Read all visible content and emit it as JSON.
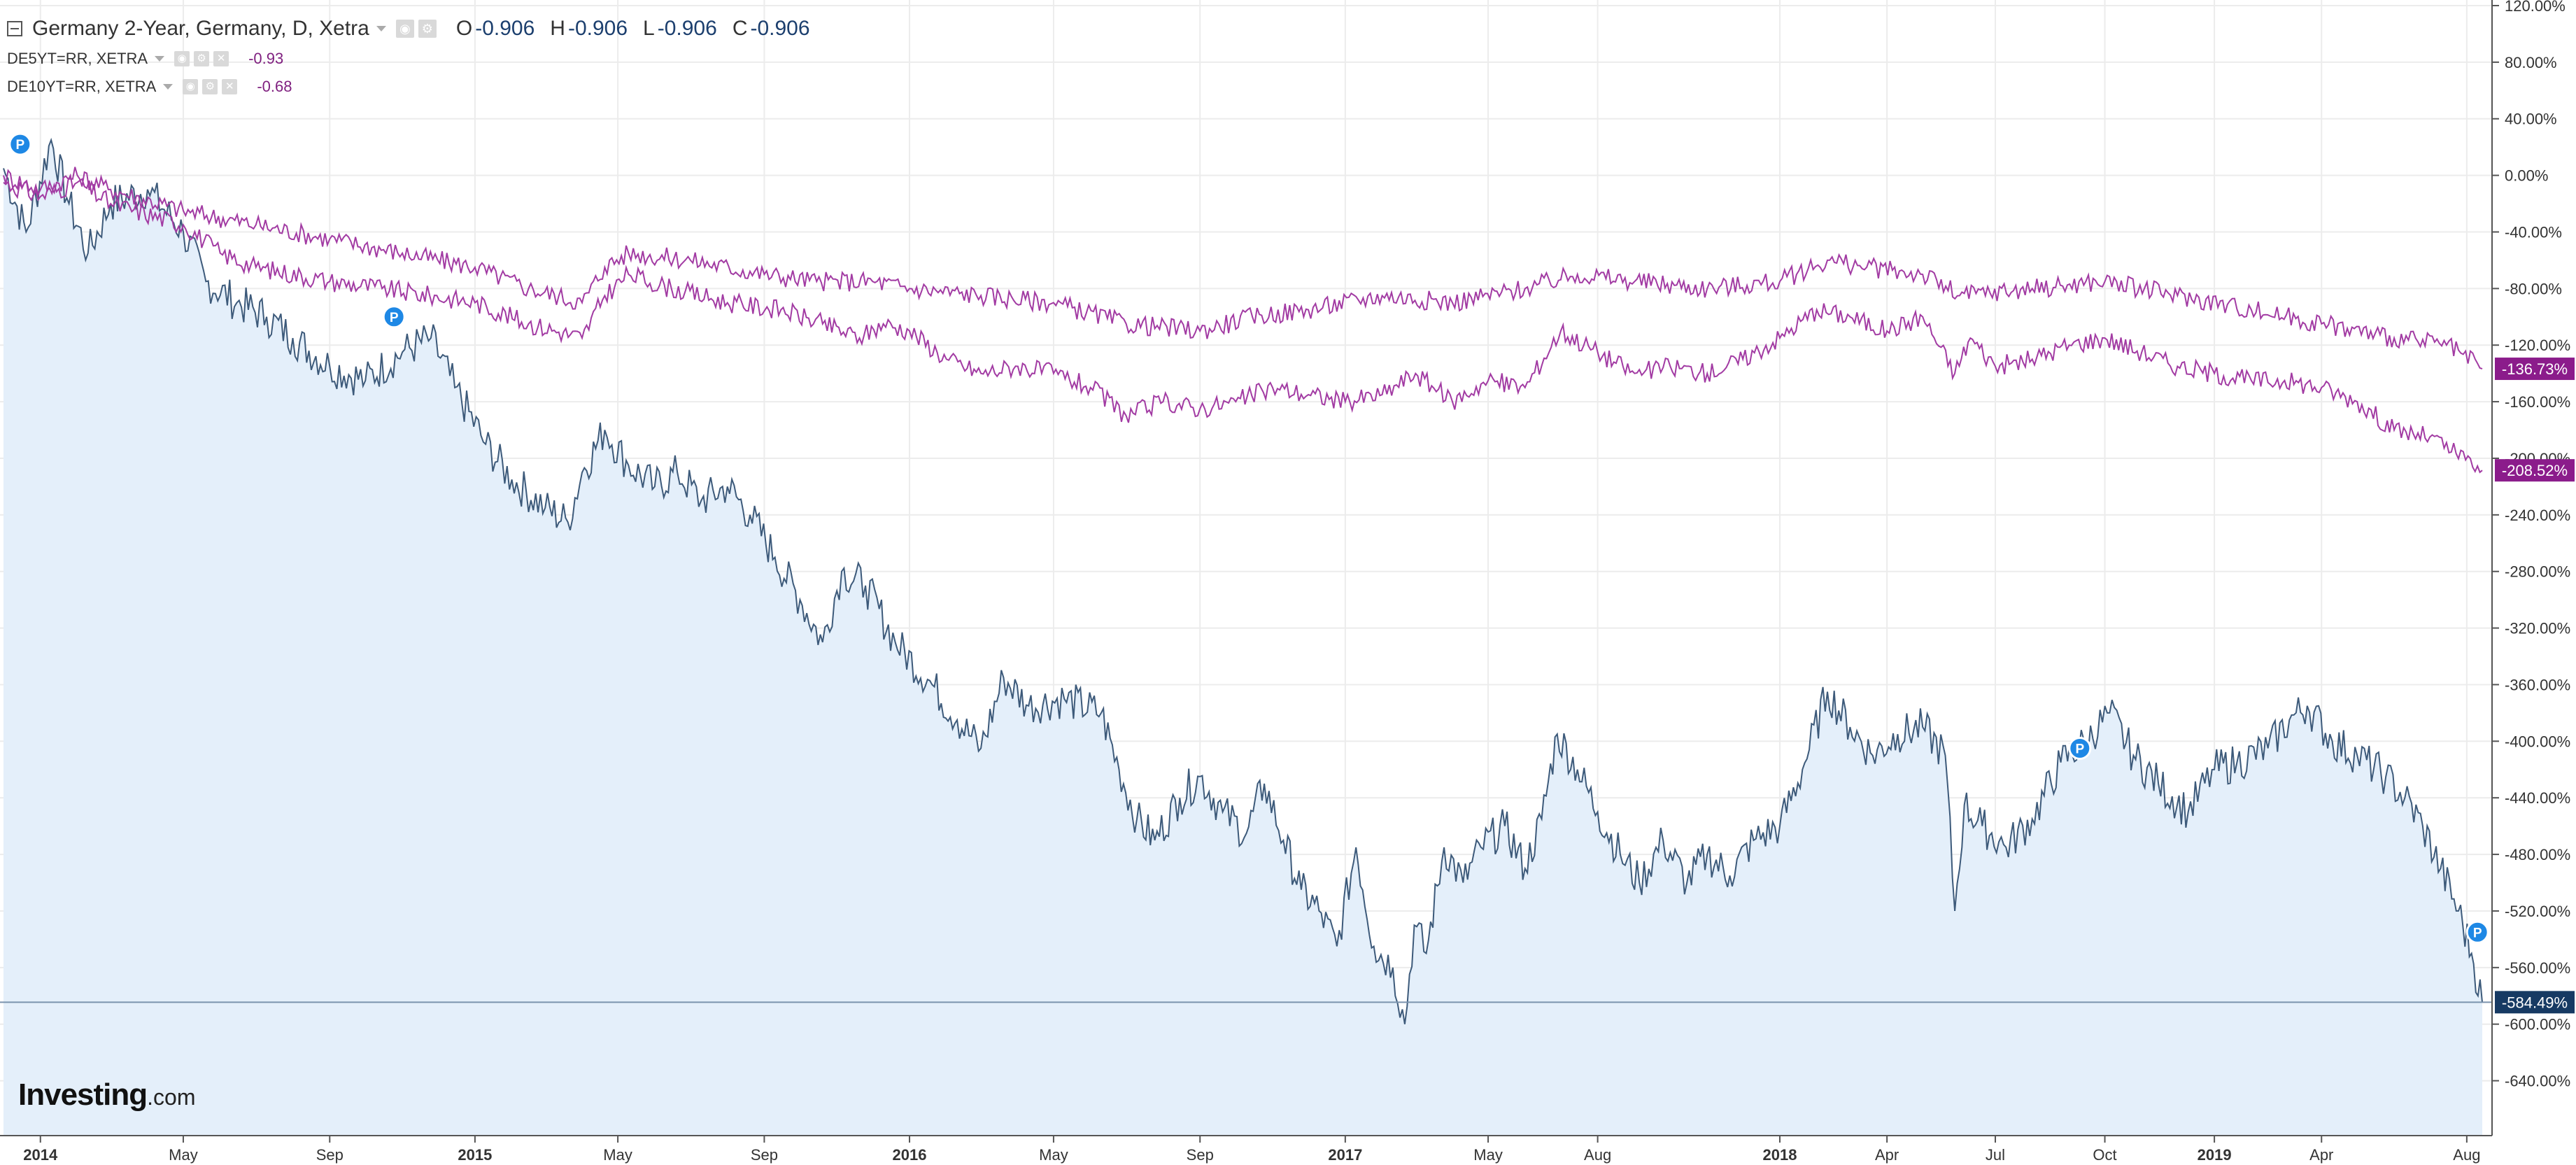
{
  "header": {
    "main_title": "Germany 2-Year, Germany, D, Xetra",
    "ohlc": [
      {
        "label": "O",
        "value": "-0.906"
      },
      {
        "label": "H",
        "value": "-0.906"
      },
      {
        "label": "L",
        "value": "-0.906"
      },
      {
        "label": "C",
        "value": "-0.906"
      }
    ],
    "compare_1": {
      "name": "DE5YT=RR, XETRA",
      "value": "-0.93"
    },
    "compare_2": {
      "name": "DE10YT=RR, XETRA",
      "value": "-0.68"
    }
  },
  "logo": {
    "name": "Investing",
    "domain": ".com"
  },
  "colors": {
    "main_line": "#3d5a7a",
    "main_fill": "#e4effa",
    "compare_line": "#a23ba3",
    "compare_tag": "#8b1c8b",
    "main_tag": "#173a63",
    "event_marker": "#1e88e5",
    "grid": "#ececec"
  },
  "chart_data": {
    "type": "area",
    "yunit": "%",
    "ylim": [
      -660,
      120
    ],
    "yticks": [
      "120.00%",
      "80.00%",
      "40.00%",
      "0.00%",
      "-40.00%",
      "-80.00%",
      "-120.00%",
      "-160.00%",
      "-200.00%",
      "-240.00%",
      "-280.00%",
      "-320.00%",
      "-360.00%",
      "-400.00%",
      "-440.00%",
      "-480.00%",
      "-520.00%",
      "-560.00%",
      "-600.00%",
      "-640.00%"
    ],
    "xlim": [
      "2013-12-01",
      "2019-08-14"
    ],
    "xticks": [
      {
        "date": "2014-01-01",
        "label": "2014",
        "major": true
      },
      {
        "date": "2014-05-01",
        "label": "May",
        "major": false
      },
      {
        "date": "2014-09-01",
        "label": "Sep",
        "major": false
      },
      {
        "date": "2015-01-01",
        "label": "2015",
        "major": true
      },
      {
        "date": "2015-05-01",
        "label": "May",
        "major": false
      },
      {
        "date": "2015-09-01",
        "label": "Sep",
        "major": false
      },
      {
        "date": "2016-01-01",
        "label": "2016",
        "major": true
      },
      {
        "date": "2016-05-01",
        "label": "May",
        "major": false
      },
      {
        "date": "2016-09-01",
        "label": "Sep",
        "major": false
      },
      {
        "date": "2017-01-01",
        "label": "2017",
        "major": true
      },
      {
        "date": "2017-05-01",
        "label": "May",
        "major": false
      },
      {
        "date": "2017-08-01",
        "label": "Aug",
        "major": false
      },
      {
        "date": "2018-01-01",
        "label": "2018",
        "major": true
      },
      {
        "date": "2018-04-01",
        "label": "Apr",
        "major": false
      },
      {
        "date": "2018-07-01",
        "label": "Jul",
        "major": false
      },
      {
        "date": "2018-10-01",
        "label": "Oct",
        "major": false
      },
      {
        "date": "2019-01-01",
        "label": "2019",
        "major": true
      },
      {
        "date": "2019-04-01",
        "label": "Apr",
        "major": false
      },
      {
        "date": "2019-08-01",
        "label": "Aug",
        "major": false
      }
    ],
    "grid": true,
    "series": [
      {
        "name": "Germany 2-Year",
        "style": "area",
        "last_label": "-584.49%",
        "points": [
          [
            "2013-12-01",
            5
          ],
          [
            "2013-12-20",
            -40
          ],
          [
            "2014-01-10",
            25
          ],
          [
            "2014-01-25",
            -20
          ],
          [
            "2014-02-10",
            -55
          ],
          [
            "2014-03-01",
            -20
          ],
          [
            "2014-04-01",
            -10
          ],
          [
            "2014-05-01",
            -40
          ],
          [
            "2014-05-20",
            -75
          ],
          [
            "2014-06-15",
            -90
          ],
          [
            "2014-07-10",
            -100
          ],
          [
            "2014-08-01",
            -115
          ],
          [
            "2014-09-01",
            -135
          ],
          [
            "2014-10-01",
            -145
          ],
          [
            "2014-11-01",
            -125
          ],
          [
            "2014-11-25",
            -115
          ],
          [
            "2014-12-15",
            -150
          ],
          [
            "2015-01-10",
            -190
          ],
          [
            "2015-02-01",
            -215
          ],
          [
            "2015-03-01",
            -235
          ],
          [
            "2015-03-20",
            -245
          ],
          [
            "2015-04-01",
            -210
          ],
          [
            "2015-04-20",
            -180
          ],
          [
            "2015-05-10",
            -205
          ],
          [
            "2015-06-01",
            -220
          ],
          [
            "2015-06-20",
            -210
          ],
          [
            "2015-07-10",
            -230
          ],
          [
            "2015-08-01",
            -220
          ],
          [
            "2015-08-20",
            -240
          ],
          [
            "2015-09-10",
            -270
          ],
          [
            "2015-10-01",
            -300
          ],
          [
            "2015-10-20",
            -330
          ],
          [
            "2015-11-05",
            -280
          ],
          [
            "2015-11-25",
            -290
          ],
          [
            "2015-12-20",
            -330
          ],
          [
            "2016-01-20",
            -360
          ],
          [
            "2016-02-10",
            -385
          ],
          [
            "2016-03-01",
            -405
          ],
          [
            "2016-03-20",
            -355
          ],
          [
            "2016-04-10",
            -375
          ],
          [
            "2016-05-10",
            -370
          ],
          [
            "2016-06-10",
            -380
          ],
          [
            "2016-06-25",
            -420
          ],
          [
            "2016-07-10",
            -455
          ],
          [
            "2016-07-25",
            -470
          ],
          [
            "2016-08-15",
            -440
          ],
          [
            "2016-09-01",
            -425
          ],
          [
            "2016-09-20",
            -450
          ],
          [
            "2016-10-10",
            -465
          ],
          [
            "2016-10-25",
            -430
          ],
          [
            "2016-11-10",
            -470
          ],
          [
            "2016-11-25",
            -505
          ],
          [
            "2016-12-10",
            -520
          ],
          [
            "2016-12-25",
            -545
          ],
          [
            "2017-01-10",
            -475
          ],
          [
            "2017-01-25",
            -545
          ],
          [
            "2017-02-10",
            -560
          ],
          [
            "2017-02-20",
            -600
          ],
          [
            "2017-02-28",
            -530
          ],
          [
            "2017-03-10",
            -550
          ],
          [
            "2017-03-25",
            -475
          ],
          [
            "2017-04-10",
            -500
          ],
          [
            "2017-04-25",
            -475
          ],
          [
            "2017-05-15",
            -460
          ],
          [
            "2017-06-01",
            -490
          ],
          [
            "2017-06-15",
            -455
          ],
          [
            "2017-06-28",
            -395
          ],
          [
            "2017-07-15",
            -420
          ],
          [
            "2017-08-01",
            -450
          ],
          [
            "2017-08-20",
            -480
          ],
          [
            "2017-09-05",
            -500
          ],
          [
            "2017-09-25",
            -470
          ],
          [
            "2017-10-15",
            -500
          ],
          [
            "2017-11-01",
            -480
          ],
          [
            "2017-11-20",
            -495
          ],
          [
            "2017-12-10",
            -470
          ],
          [
            "2018-01-01",
            -460
          ],
          [
            "2018-01-20",
            -420
          ],
          [
            "2018-02-10",
            -365
          ],
          [
            "2018-03-01",
            -390
          ],
          [
            "2018-03-20",
            -410
          ],
          [
            "2018-04-10",
            -395
          ],
          [
            "2018-05-01",
            -390
          ],
          [
            "2018-05-20",
            -410
          ],
          [
            "2018-05-28",
            -520
          ],
          [
            "2018-06-05",
            -445
          ],
          [
            "2018-06-20",
            -460
          ],
          [
            "2018-07-10",
            -475
          ],
          [
            "2018-08-01",
            -455
          ],
          [
            "2018-08-25",
            -415
          ],
          [
            "2018-09-15",
            -400
          ],
          [
            "2018-10-05",
            -380
          ],
          [
            "2018-10-25",
            -410
          ],
          [
            "2018-11-15",
            -430
          ],
          [
            "2018-12-10",
            -450
          ],
          [
            "2019-01-01",
            -420
          ],
          [
            "2019-01-20",
            -415
          ],
          [
            "2019-02-15",
            -405
          ],
          [
            "2019-03-05",
            -385
          ],
          [
            "2019-03-20",
            -375
          ],
          [
            "2019-04-10",
            -400
          ],
          [
            "2019-05-01",
            -410
          ],
          [
            "2019-05-25",
            -425
          ],
          [
            "2019-06-10",
            -440
          ],
          [
            "2019-06-25",
            -460
          ],
          [
            "2019-07-10",
            -490
          ],
          [
            "2019-07-25",
            -520
          ],
          [
            "2019-08-05",
            -550
          ],
          [
            "2019-08-14",
            -584.49
          ]
        ]
      },
      {
        "name": "DE5YT=RR, XETRA",
        "style": "line",
        "last_label": "-208.52%",
        "points": [
          [
            "2013-12-01",
            -5
          ],
          [
            "2014-01-01",
            -15
          ],
          [
            "2014-02-01",
            -5
          ],
          [
            "2014-03-01",
            -20
          ],
          [
            "2014-05-01",
            -35
          ],
          [
            "2014-06-01",
            -55
          ],
          [
            "2014-07-01",
            -65
          ],
          [
            "2014-09-01",
            -75
          ],
          [
            "2014-10-15",
            -80
          ],
          [
            "2015-01-01",
            -90
          ],
          [
            "2015-02-15",
            -105
          ],
          [
            "2015-04-01",
            -115
          ],
          [
            "2015-04-20",
            -85
          ],
          [
            "2015-05-10",
            -70
          ],
          [
            "2015-06-15",
            -80
          ],
          [
            "2015-08-01",
            -90
          ],
          [
            "2015-09-15",
            -95
          ],
          [
            "2015-10-20",
            -105
          ],
          [
            "2015-11-20",
            -115
          ],
          [
            "2015-12-10",
            -105
          ],
          [
            "2016-01-01",
            -110
          ],
          [
            "2016-02-01",
            -130
          ],
          [
            "2016-03-01",
            -140
          ],
          [
            "2016-04-01",
            -135
          ],
          [
            "2016-05-01",
            -140
          ],
          [
            "2016-06-01",
            -150
          ],
          [
            "2016-07-01",
            -170
          ],
          [
            "2016-08-01",
            -160
          ],
          [
            "2016-09-01",
            -165
          ],
          [
            "2016-10-01",
            -160
          ],
          [
            "2016-11-01",
            -150
          ],
          [
            "2016-12-01",
            -155
          ],
          [
            "2017-01-01",
            -160
          ],
          [
            "2017-02-01",
            -155
          ],
          [
            "2017-03-01",
            -140
          ],
          [
            "2017-04-01",
            -160
          ],
          [
            "2017-05-01",
            -145
          ],
          [
            "2017-06-01",
            -150
          ],
          [
            "2017-07-01",
            -110
          ],
          [
            "2017-08-01",
            -125
          ],
          [
            "2017-09-01",
            -140
          ],
          [
            "2017-10-01",
            -135
          ],
          [
            "2017-11-01",
            -140
          ],
          [
            "2017-12-01",
            -130
          ],
          [
            "2018-01-01",
            -115
          ],
          [
            "2018-02-01",
            -95
          ],
          [
            "2018-03-01",
            -100
          ],
          [
            "2018-04-01",
            -110
          ],
          [
            "2018-05-01",
            -100
          ],
          [
            "2018-05-28",
            -140
          ],
          [
            "2018-06-10",
            -115
          ],
          [
            "2018-07-01",
            -135
          ],
          [
            "2018-08-01",
            -130
          ],
          [
            "2018-09-01",
            -120
          ],
          [
            "2018-10-01",
            -115
          ],
          [
            "2018-11-01",
            -125
          ],
          [
            "2018-12-01",
            -135
          ],
          [
            "2019-01-01",
            -140
          ],
          [
            "2019-02-01",
            -145
          ],
          [
            "2019-03-01",
            -145
          ],
          [
            "2019-04-01",
            -150
          ],
          [
            "2019-05-01",
            -160
          ],
          [
            "2019-06-01",
            -180
          ],
          [
            "2019-07-01",
            -185
          ],
          [
            "2019-08-14",
            -208.52
          ]
        ]
      },
      {
        "name": "DE10YT=RR, XETRA",
        "style": "line",
        "last_label": "-136.73%",
        "points": [
          [
            "2013-12-01",
            0
          ],
          [
            "2014-01-01",
            -10
          ],
          [
            "2014-02-01",
            0
          ],
          [
            "2014-03-01",
            -10
          ],
          [
            "2014-05-01",
            -25
          ],
          [
            "2014-07-01",
            -35
          ],
          [
            "2014-09-01",
            -45
          ],
          [
            "2014-11-01",
            -55
          ],
          [
            "2015-01-01",
            -65
          ],
          [
            "2015-02-15",
            -80
          ],
          [
            "2015-04-01",
            -90
          ],
          [
            "2015-04-20",
            -65
          ],
          [
            "2015-05-10",
            -55
          ],
          [
            "2015-07-01",
            -60
          ],
          [
            "2015-09-01",
            -70
          ],
          [
            "2015-10-15",
            -75
          ],
          [
            "2015-12-01",
            -75
          ],
          [
            "2016-01-01",
            -80
          ],
          [
            "2016-03-01",
            -85
          ],
          [
            "2016-05-01",
            -90
          ],
          [
            "2016-07-01",
            -105
          ],
          [
            "2016-09-01",
            -110
          ],
          [
            "2016-10-15",
            -100
          ],
          [
            "2016-12-01",
            -95
          ],
          [
            "2017-02-01",
            -85
          ],
          [
            "2017-04-01",
            -90
          ],
          [
            "2017-06-01",
            -80
          ],
          [
            "2017-07-15",
            -70
          ],
          [
            "2017-09-01",
            -75
          ],
          [
            "2017-11-01",
            -80
          ],
          [
            "2018-01-01",
            -75
          ],
          [
            "2018-02-10",
            -60
          ],
          [
            "2018-03-15",
            -65
          ],
          [
            "2018-05-01",
            -70
          ],
          [
            "2018-06-01",
            -85
          ],
          [
            "2018-08-01",
            -80
          ],
          [
            "2018-10-01",
            -75
          ],
          [
            "2018-12-01",
            -85
          ],
          [
            "2019-02-01",
            -95
          ],
          [
            "2019-04-01",
            -105
          ],
          [
            "2019-06-01",
            -115
          ],
          [
            "2019-07-15",
            -120
          ],
          [
            "2019-08-14",
            -136.73
          ]
        ]
      }
    ],
    "event_markers": [
      {
        "date": "2013-12-15",
        "value": 22,
        "label": "P"
      },
      {
        "date": "2014-10-25",
        "value": -100,
        "label": "P"
      },
      {
        "date": "2018-09-10",
        "value": -405,
        "label": "P"
      },
      {
        "date": "2019-08-10",
        "value": -535,
        "label": "P"
      }
    ]
  }
}
